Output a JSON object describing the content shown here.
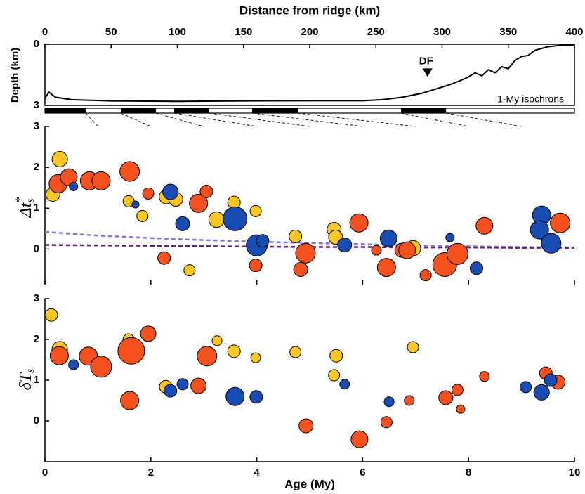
{
  "chart_data": [
    {
      "type": "line",
      "xlabel": "Distance from ridge (km)",
      "ylabel": "Depth (km)",
      "xlim": [
        0,
        400
      ],
      "xticks": [
        0,
        50,
        100,
        150,
        200,
        250,
        300,
        350,
        400
      ],
      "ylim": [
        3,
        0
      ],
      "yticks": [
        0,
        3
      ],
      "color": "#000000",
      "x": [
        0,
        3,
        8,
        20,
        50,
        100,
        150,
        200,
        240,
        255,
        270,
        285,
        295,
        305,
        315,
        320,
        325,
        330,
        335,
        340,
        345,
        350,
        355,
        360,
        365,
        370,
        380,
        390,
        400
      ],
      "values": [
        2.65,
        2.35,
        2.6,
        2.72,
        2.78,
        2.8,
        2.78,
        2.77,
        2.77,
        2.72,
        2.6,
        2.4,
        2.2,
        2.0,
        1.75,
        1.6,
        1.4,
        1.55,
        1.25,
        1.4,
        1.1,
        1.2,
        0.8,
        0.6,
        0.55,
        0.3,
        0.12,
        0.05,
        0.03
      ],
      "annotation": {
        "text": "DF",
        "x": 289,
        "y": 1.6
      },
      "isochrons": {
        "label": "1-My isochrons",
        "distances": [
          30.8,
          57.3,
          83.8,
          97.6,
          124,
          156.5,
          191,
          269,
          303
        ],
        "ages": [
          1,
          2,
          3,
          4,
          5,
          6,
          7,
          8,
          9
        ]
      }
    },
    {
      "type": "scatter",
      "ylabel": {
        "base": "Δt",
        "sup": "*",
        "sub": "s"
      },
      "xlim": [
        0,
        10
      ],
      "xticks": [
        0,
        2,
        4,
        6,
        8,
        10
      ],
      "ylim": [
        -0.87,
        3
      ],
      "yticks": [
        0,
        1,
        2,
        3
      ],
      "series": [
        {
          "color": "#f9c623",
          "x": [
            0.15,
            0.28,
            1.58,
            1.84,
            2.29,
            2.47,
            2.73,
            3.24,
            3.57,
            3.98,
            4.73,
            5.46,
            5.49,
            6.95
          ],
          "values": [
            1.34,
            2.2,
            1.17,
            0.81,
            1.28,
            1.22,
            -0.52,
            0.72,
            1.14,
            0.93,
            0.31,
            0.48,
            0.29,
            0.02
          ],
          "sizes": [
            10,
            11,
            8,
            8,
            10,
            10,
            8,
            11,
            9,
            8,
            9,
            10,
            10,
            11
          ]
        },
        {
          "color": "#f4511e",
          "x": [
            0.25,
            0.45,
            0.84,
            1.06,
            1.6,
            1.95,
            2.25,
            2.9,
            3.05,
            3.98,
            4.83,
            4.92,
            5.93,
            6.26,
            6.45,
            6.74,
            6.84,
            7.19,
            7.55,
            7.79,
            8.3,
            9.73
          ],
          "values": [
            1.6,
            1.76,
            1.67,
            1.67,
            1.9,
            1.36,
            -0.22,
            1.12,
            1.41,
            -0.4,
            -0.5,
            -0.1,
            0.64,
            -0.03,
            -0.45,
            -0.03,
            -0.03,
            -0.64,
            -0.38,
            -0.12,
            0.57,
            0.64
          ],
          "sizes": [
            13,
            12,
            13,
            13,
            14,
            8,
            9,
            13,
            9,
            9,
            10,
            14,
            13,
            7,
            13,
            10,
            12,
            8,
            17,
            15,
            12,
            14
          ]
        },
        {
          "color": "#1a4db3",
          "x": [
            0.54,
            1.71,
            2.37,
            2.6,
            3.59,
            4.0,
            4.11,
            5.66,
            6.49,
            7.65,
            8.15,
            9.47,
            9.38,
            9.34,
            9.56
          ],
          "values": [
            1.53,
            1.09,
            1.4,
            0.62,
            0.74,
            0.09,
            0.2,
            0.1,
            0.26,
            0.28,
            -0.47,
            0.24,
            0.83,
            0.47,
            0.14
          ],
          "sizes": [
            6,
            5,
            11,
            10,
            17,
            15,
            9,
            10,
            12,
            6,
            9,
            7,
            13,
            13,
            14
          ]
        }
      ],
      "lines": [
        {
          "color": "#8470e8",
          "x": [
            0,
            1,
            2,
            3,
            4,
            5,
            6,
            7,
            8,
            9,
            10
          ],
          "values": [
            0.42,
            0.33,
            0.27,
            0.22,
            0.18,
            0.15,
            0.12,
            0.09,
            0.07,
            0.05,
            0.04
          ]
        },
        {
          "color": "#6a1b7a",
          "x": [
            0,
            1,
            2,
            3,
            4,
            5,
            6,
            7,
            8,
            9,
            10
          ],
          "values": [
            0.1,
            0.09,
            0.08,
            0.07,
            0.06,
            0.05,
            0.05,
            0.04,
            0.04,
            0.03,
            0.03
          ]
        }
      ]
    },
    {
      "type": "scatter",
      "xlabel": "Age (My)",
      "ylabel": {
        "base": "δT",
        "sub": "s"
      },
      "xlim": [
        0,
        10
      ],
      "xticks": [
        0,
        2,
        4,
        6,
        8,
        10
      ],
      "ylim": [
        -1,
        3
      ],
      "yticks": [
        0,
        1,
        2,
        3
      ],
      "series": [
        {
          "color": "#f9c623",
          "x": [
            0.12,
            0.28,
            1.58,
            2.28,
            3.25,
            3.57,
            3.98,
            4.73,
            5.46,
            5.5,
            6.95
          ],
          "values": [
            2.6,
            1.76,
            2.0,
            0.84,
            1.97,
            1.71,
            1.55,
            1.69,
            1.12,
            1.6,
            1.81
          ],
          "sizes": [
            9,
            11,
            8,
            9,
            7,
            9,
            7,
            8,
            8,
            9,
            8
          ]
        },
        {
          "color": "#f4511e",
          "x": [
            0.27,
            0.82,
            1.06,
            1.63,
            1.95,
            1.6,
            2.9,
            3.06,
            4.93,
            5.94,
            6.45,
            6.88,
            7.57,
            7.79,
            7.85,
            8.3,
            9.46,
            9.69
          ],
          "values": [
            1.6,
            1.59,
            1.33,
            1.72,
            2.14,
            0.5,
            0.86,
            1.59,
            -0.12,
            -0.45,
            -0.03,
            0.5,
            0.57,
            0.76,
            0.29,
            1.09,
            1.17,
            0.95
          ],
          "sizes": [
            13,
            13,
            15,
            19,
            11,
            13,
            11,
            14,
            10,
            12,
            8,
            7,
            10,
            8,
            6,
            7,
            9,
            10
          ]
        },
        {
          "color": "#1a4db3",
          "x": [
            0.54,
            2.37,
            2.6,
            3.59,
            3.99,
            5.66,
            6.5,
            9.08,
            9.38,
            9.55
          ],
          "values": [
            1.38,
            0.74,
            0.9,
            0.6,
            0.59,
            0.9,
            0.47,
            0.83,
            0.7,
            1.0
          ],
          "sizes": [
            7,
            9,
            8,
            13,
            9,
            7,
            7,
            8,
            11,
            9
          ]
        }
      ]
    }
  ]
}
